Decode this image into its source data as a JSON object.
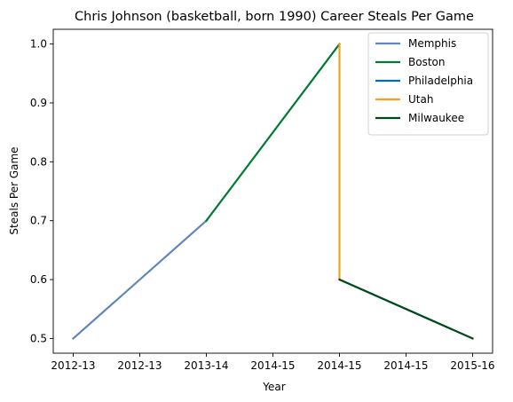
{
  "chart_data": {
    "type": "line",
    "title": "Chris Johnson (basketball, born 1990) Career Steals Per Game",
    "xlabel": "Year",
    "ylabel": "Steals Per Game",
    "x_ticks": [
      "2012-13",
      "2012-13",
      "2013-14",
      "2014-15",
      "2014-15",
      "2014-15",
      "2015-16"
    ],
    "x_tick_positions": [
      0,
      0.5,
      1,
      1.5,
      2,
      2.5,
      3
    ],
    "xlim": [
      -0.15,
      3.15
    ],
    "y_ticks": [
      "0.5",
      "0.6",
      "0.7",
      "0.8",
      "0.9",
      "1.0"
    ],
    "y_tick_values": [
      0.5,
      0.6,
      0.7,
      0.8,
      0.9,
      1.0
    ],
    "ylim": [
      0.475,
      1.025
    ],
    "grid": false,
    "legend_position": "top-right",
    "series": [
      {
        "name": "Memphis",
        "color": "#5f87b9",
        "x": [
          0,
          1
        ],
        "y": [
          0.5,
          0.7
        ]
      },
      {
        "name": "Boston",
        "color": "#007a33",
        "x": [
          1,
          2
        ],
        "y": [
          0.7,
          1.0
        ]
      },
      {
        "name": "Philadelphia",
        "color": "#006bb6",
        "x": [],
        "y": []
      },
      {
        "name": "Utah",
        "color": "#f9a01b",
        "x": [
          2,
          2
        ],
        "y": [
          1.0,
          0.6
        ]
      },
      {
        "name": "Milwaukee",
        "color": "#00471b",
        "x": [
          2,
          3
        ],
        "y": [
          0.6,
          0.5
        ]
      }
    ]
  }
}
